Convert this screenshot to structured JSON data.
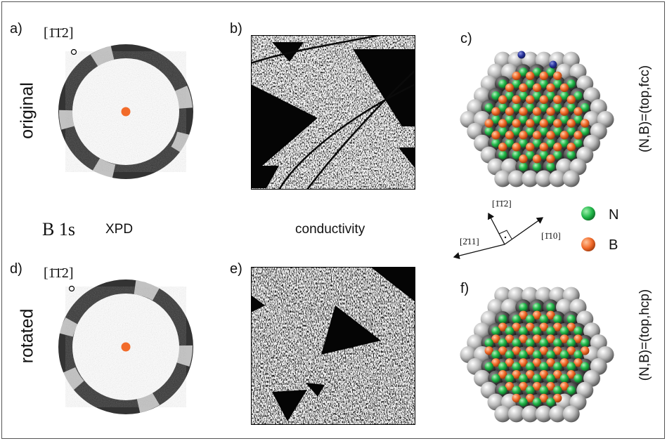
{
  "panels": {
    "a": "a)",
    "b": "b)",
    "c": "c)",
    "d": "d)",
    "e": "e)",
    "f": "f)"
  },
  "rows": {
    "top": "original",
    "bottom": "rotated"
  },
  "middle": {
    "b1s": "B 1s",
    "xpd": "XPD",
    "conductivity": "conductivity"
  },
  "directions": {
    "xpd_marker_top": "[1̄1̄2]",
    "xpd_marker_bottom": "[1̄1̄2]",
    "axis_up": "[1̄1̄2]",
    "axis_left": "[2̄11]",
    "axis_right": "[1̄10]"
  },
  "legend": {
    "n_label": "N",
    "b_label": "B"
  },
  "structures": {
    "top": "(N,B)=(top,fcc)",
    "bottom": "(N,B)=(top,hcp)"
  },
  "colors": {
    "n_atom": "#22b84a",
    "b_atom": "#f26b2a",
    "substrate_light": "#cfcfcf",
    "substrate_dark": "#3a3a3a",
    "center_dot": "#f26b2a",
    "blue_atom": "#27339c"
  }
}
